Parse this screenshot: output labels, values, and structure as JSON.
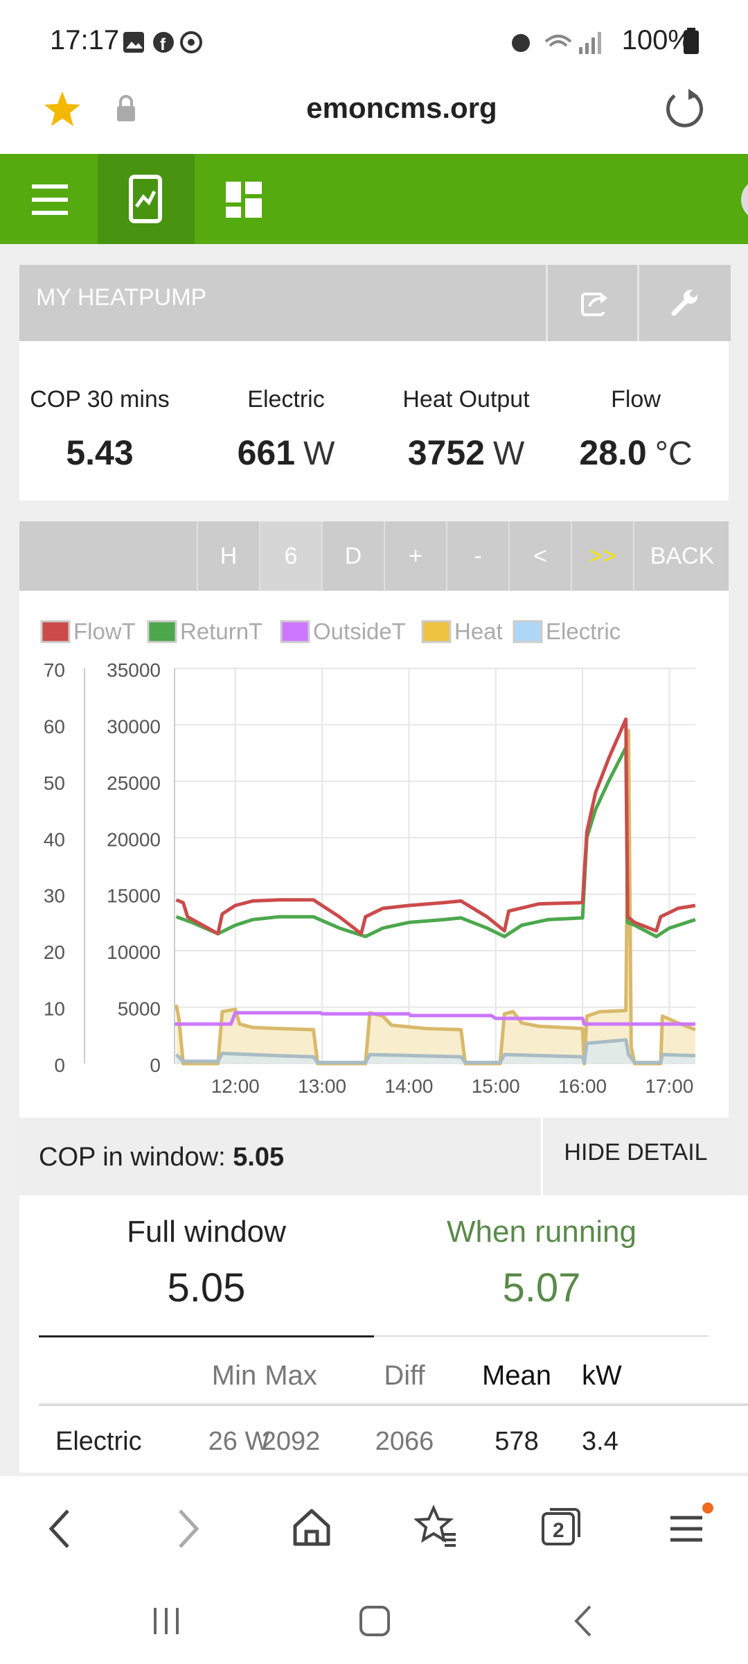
{
  "status": {
    "time": "17:17",
    "battery": "100%"
  },
  "browser": {
    "host": "emoncms.org"
  },
  "panel": {
    "title": "MY HEATPUMP",
    "stats": [
      {
        "label": "COP 30 mins",
        "value": "5.43",
        "unit": ""
      },
      {
        "label": "Electric",
        "value": "661",
        "unit": "W"
      },
      {
        "label": "Heat Output",
        "value": "3752",
        "unit": "W"
      },
      {
        "label": "Flow",
        "value": "28.0",
        "unit": "°C"
      }
    ]
  },
  "timebar": {
    "buttons": [
      "H",
      "6",
      "D",
      "+",
      "-",
      "<",
      ">>",
      "BACK"
    ]
  },
  "chart_data": {
    "type": "line",
    "legend": [
      "FlowT",
      "ReturnT",
      "OutsideT",
      "Heat",
      "Electric"
    ],
    "series_colors": [
      "#cb4b4b",
      "#4da74d",
      "#cc77ff",
      "#edc240",
      "#afd8f8"
    ],
    "y_left_ticks": [
      "70",
      "60",
      "50",
      "40",
      "30",
      "20",
      "10",
      "0"
    ],
    "y_right_ticks": [
      "35000",
      "30000",
      "25000",
      "20000",
      "15000",
      "10000",
      "5000",
      "0"
    ],
    "x_ticks": [
      "12:00",
      "13:00",
      "14:00",
      "15:00",
      "16:00",
      "17:00"
    ],
    "ylim_left": [
      0,
      70
    ],
    "ylim_right": [
      0,
      35000
    ],
    "x_hours": [
      11.3,
      17.3
    ],
    "series": [
      {
        "name": "FlowT",
        "axis": "left",
        "points": [
          [
            11.32,
            29
          ],
          [
            11.4,
            28.5
          ],
          [
            11.45,
            26
          ],
          [
            11.8,
            23
          ],
          [
            11.85,
            26.5
          ],
          [
            12.0,
            28
          ],
          [
            12.2,
            28.8
          ],
          [
            12.5,
            29
          ],
          [
            12.9,
            29
          ],
          [
            13.2,
            26
          ],
          [
            13.45,
            23
          ],
          [
            13.5,
            26
          ],
          [
            13.7,
            27.5
          ],
          [
            14.0,
            28
          ],
          [
            14.4,
            28.5
          ],
          [
            14.6,
            28.8
          ],
          [
            14.9,
            26
          ],
          [
            15.1,
            23.5
          ],
          [
            15.15,
            27
          ],
          [
            15.5,
            28.3
          ],
          [
            16.0,
            28.5
          ],
          [
            16.05,
            41
          ],
          [
            16.15,
            48
          ],
          [
            16.3,
            54
          ],
          [
            16.5,
            61
          ],
          [
            16.52,
            26
          ],
          [
            16.6,
            25
          ],
          [
            16.85,
            23.5
          ],
          [
            16.9,
            26
          ],
          [
            17.1,
            27.5
          ],
          [
            17.3,
            28
          ]
        ]
      },
      {
        "name": "ReturnT",
        "axis": "left",
        "points": [
          [
            11.32,
            26
          ],
          [
            11.5,
            25
          ],
          [
            11.8,
            23
          ],
          [
            12.0,
            24.5
          ],
          [
            12.2,
            25.5
          ],
          [
            12.5,
            26
          ],
          [
            12.9,
            26
          ],
          [
            13.2,
            24
          ],
          [
            13.5,
            22.5
          ],
          [
            13.7,
            24
          ],
          [
            14.0,
            25
          ],
          [
            14.4,
            25.5
          ],
          [
            14.6,
            25.8
          ],
          [
            14.9,
            24
          ],
          [
            15.1,
            22.5
          ],
          [
            15.3,
            24.5
          ],
          [
            15.6,
            25.5
          ],
          [
            16.0,
            25.8
          ],
          [
            16.05,
            40
          ],
          [
            16.15,
            45
          ],
          [
            16.3,
            50
          ],
          [
            16.5,
            56
          ],
          [
            16.52,
            25
          ],
          [
            16.6,
            24.5
          ],
          [
            16.85,
            22.5
          ],
          [
            17.0,
            24
          ],
          [
            17.3,
            25.5
          ]
        ]
      },
      {
        "name": "OutsideT",
        "axis": "left",
        "points": [
          [
            11.3,
            7
          ],
          [
            11.95,
            7
          ],
          [
            12.0,
            9
          ],
          [
            12.98,
            9
          ],
          [
            13.0,
            8.8
          ],
          [
            14.0,
            8.8
          ],
          [
            14.02,
            8.5
          ],
          [
            14.95,
            8.5
          ],
          [
            15.0,
            8
          ],
          [
            16.0,
            8
          ],
          [
            16.02,
            7
          ],
          [
            17.3,
            7
          ]
        ]
      },
      {
        "name": "Heat",
        "axis": "right",
        "points": [
          [
            11.32,
            5200
          ],
          [
            11.35,
            4000
          ],
          [
            11.4,
            0
          ],
          [
            11.8,
            0
          ],
          [
            11.85,
            4600
          ],
          [
            12.0,
            4800
          ],
          [
            12.05,
            3500
          ],
          [
            12.2,
            3200
          ],
          [
            12.5,
            3100
          ],
          [
            12.9,
            3000
          ],
          [
            12.95,
            0
          ],
          [
            13.5,
            0
          ],
          [
            13.55,
            4500
          ],
          [
            13.7,
            4200
          ],
          [
            13.8,
            3400
          ],
          [
            14.2,
            3100
          ],
          [
            14.6,
            3000
          ],
          [
            14.65,
            0
          ],
          [
            15.05,
            0
          ],
          [
            15.1,
            4400
          ],
          [
            15.2,
            4600
          ],
          [
            15.3,
            3600
          ],
          [
            15.5,
            3300
          ],
          [
            16.0,
            3100
          ],
          [
            16.02,
            0
          ],
          [
            16.05,
            4200
          ],
          [
            16.2,
            4600
          ],
          [
            16.5,
            4700
          ],
          [
            16.53,
            29500
          ],
          [
            16.56,
            1500
          ],
          [
            16.6,
            0
          ],
          [
            16.9,
            0
          ],
          [
            16.92,
            4200
          ],
          [
            17.1,
            3600
          ],
          [
            17.3,
            3000
          ]
        ]
      },
      {
        "name": "Electric",
        "axis": "right",
        "points": [
          [
            11.32,
            800
          ],
          [
            11.4,
            200
          ],
          [
            11.8,
            200
          ],
          [
            11.85,
            900
          ],
          [
            12.5,
            700
          ],
          [
            12.9,
            600
          ],
          [
            12.95,
            100
          ],
          [
            13.5,
            100
          ],
          [
            13.55,
            800
          ],
          [
            14.6,
            600
          ],
          [
            14.65,
            100
          ],
          [
            15.05,
            100
          ],
          [
            15.1,
            800
          ],
          [
            16.0,
            600
          ],
          [
            16.02,
            100
          ],
          [
            16.05,
            1800
          ],
          [
            16.5,
            2100
          ],
          [
            16.53,
            800
          ],
          [
            16.6,
            100
          ],
          [
            16.9,
            100
          ],
          [
            16.92,
            800
          ],
          [
            17.3,
            700
          ]
        ]
      }
    ]
  },
  "cop": {
    "label": "COP in window:",
    "value": "5.05",
    "hide_label": "HIDE DETAIL"
  },
  "detail": {
    "tabs": [
      {
        "label": "Full window",
        "value": "5.05"
      },
      {
        "label": "When running",
        "value": "5.07"
      }
    ],
    "columns": [
      "",
      "Min",
      "Max",
      "Diff",
      "Mean",
      "kW"
    ],
    "rows": [
      {
        "name": "Electric",
        "cells": [
          "26 W",
          "2092",
          "2066",
          "578",
          "3.4"
        ]
      }
    ]
  }
}
